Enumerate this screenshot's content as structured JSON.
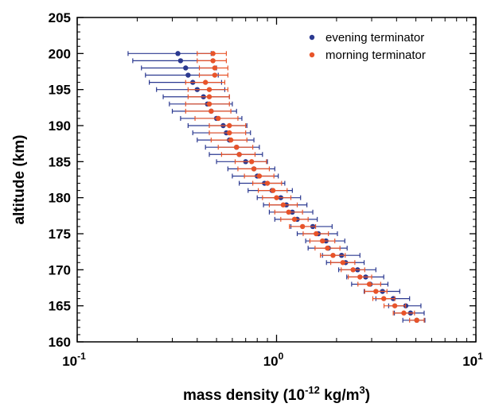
{
  "chart_data": {
    "type": "scatter",
    "xscale": "log",
    "xlim": [
      0.1,
      10
    ],
    "ylim": [
      160,
      205
    ],
    "xlabel_main": "mass density (10",
    "xlabel_exp": "-12",
    "xlabel_unit": " kg/m",
    "xlabel_unit_exp": "3",
    "xlabel_close": ")",
    "ylabel": "altitude (km)",
    "x_major_ticks": [
      {
        "value": 0.1,
        "base": "10",
        "exp": "-1"
      },
      {
        "value": 1,
        "base": "10",
        "exp": "0"
      },
      {
        "value": 10,
        "base": "10",
        "exp": "1"
      }
    ],
    "y_ticks": [
      160,
      165,
      170,
      175,
      180,
      185,
      190,
      195,
      200,
      205
    ],
    "legend_position": "top-right",
    "error_bars": "horizontal",
    "series": [
      {
        "name": "evening terminator",
        "color": "#2b3990",
        "points": [
          {
            "y": 200,
            "x": 0.32,
            "xmin": 0.18,
            "xmax": 0.47
          },
          {
            "y": 199,
            "x": 0.33,
            "xmin": 0.19,
            "xmax": 0.48
          },
          {
            "y": 198,
            "x": 0.35,
            "xmin": 0.21,
            "xmax": 0.5
          },
          {
            "y": 197,
            "x": 0.36,
            "xmin": 0.22,
            "xmax": 0.51
          },
          {
            "y": 196,
            "x": 0.38,
            "xmin": 0.23,
            "xmax": 0.53
          },
          {
            "y": 195,
            "x": 0.4,
            "xmin": 0.25,
            "xmax": 0.55
          },
          {
            "y": 194,
            "x": 0.43,
            "xmin": 0.27,
            "xmax": 0.58
          },
          {
            "y": 193,
            "x": 0.45,
            "xmin": 0.29,
            "xmax": 0.6
          },
          {
            "y": 192,
            "x": 0.47,
            "xmin": 0.3,
            "xmax": 0.63
          },
          {
            "y": 191,
            "x": 0.5,
            "xmin": 0.33,
            "xmax": 0.67
          },
          {
            "y": 190,
            "x": 0.54,
            "xmin": 0.36,
            "xmax": 0.71
          },
          {
            "y": 189,
            "x": 0.56,
            "xmin": 0.38,
            "xmax": 0.74
          },
          {
            "y": 188,
            "x": 0.58,
            "xmin": 0.4,
            "xmax": 0.77
          },
          {
            "y": 187,
            "x": 0.63,
            "xmin": 0.44,
            "xmax": 0.82
          },
          {
            "y": 186,
            "x": 0.65,
            "xmin": 0.46,
            "xmax": 0.85
          },
          {
            "y": 185,
            "x": 0.7,
            "xmin": 0.5,
            "xmax": 0.9
          },
          {
            "y": 184,
            "x": 0.77,
            "xmin": 0.57,
            "xmax": 0.98
          },
          {
            "y": 183,
            "x": 0.8,
            "xmin": 0.6,
            "xmax": 1.02
          },
          {
            "y": 182,
            "x": 0.87,
            "xmin": 0.65,
            "xmax": 1.1
          },
          {
            "y": 181,
            "x": 0.95,
            "xmin": 0.72,
            "xmax": 1.2
          },
          {
            "y": 180,
            "x": 1.05,
            "xmin": 0.8,
            "xmax": 1.32
          },
          {
            "y": 179,
            "x": 1.12,
            "xmin": 0.86,
            "xmax": 1.42
          },
          {
            "y": 178,
            "x": 1.2,
            "xmin": 0.92,
            "xmax": 1.52
          },
          {
            "y": 177,
            "x": 1.27,
            "xmin": 0.98,
            "xmax": 1.6
          },
          {
            "y": 176,
            "x": 1.52,
            "xmin": 1.18,
            "xmax": 1.9
          },
          {
            "y": 175,
            "x": 1.62,
            "xmin": 1.27,
            "xmax": 2.02
          },
          {
            "y": 174,
            "x": 1.77,
            "xmin": 1.4,
            "xmax": 2.2
          },
          {
            "y": 173,
            "x": 1.82,
            "xmin": 1.44,
            "xmax": 2.26
          },
          {
            "y": 172,
            "x": 2.12,
            "xmin": 1.7,
            "xmax": 2.62
          },
          {
            "y": 171,
            "x": 2.22,
            "xmin": 1.78,
            "xmax": 2.75
          },
          {
            "y": 170,
            "x": 2.55,
            "xmin": 2.05,
            "xmax": 3.15
          },
          {
            "y": 169,
            "x": 2.8,
            "xmin": 2.25,
            "xmax": 3.45
          },
          {
            "y": 168,
            "x": 2.95,
            "xmin": 2.38,
            "xmax": 3.62
          },
          {
            "y": 167,
            "x": 3.4,
            "xmin": 2.75,
            "xmax": 4.15
          },
          {
            "y": 166,
            "x": 3.85,
            "xmin": 3.15,
            "xmax": 4.65
          },
          {
            "y": 165,
            "x": 4.45,
            "xmin": 3.65,
            "xmax": 5.3
          },
          {
            "y": 164,
            "x": 4.7,
            "xmin": 3.9,
            "xmax": 5.5
          },
          {
            "y": 163,
            "x": 5.05,
            "xmin": 4.3,
            "xmax": 5.55
          }
        ]
      },
      {
        "name": "morning terminator",
        "color": "#e8542a",
        "points": [
          {
            "y": 200,
            "x": 0.48,
            "xmin": 0.4,
            "xmax": 0.56
          },
          {
            "y": 199,
            "x": 0.48,
            "xmin": 0.4,
            "xmax": 0.56
          },
          {
            "y": 198,
            "x": 0.49,
            "xmin": 0.41,
            "xmax": 0.57
          },
          {
            "y": 197,
            "x": 0.49,
            "xmin": 0.41,
            "xmax": 0.57
          },
          {
            "y": 196,
            "x": 0.44,
            "xmin": 0.35,
            "xmax": 0.55
          },
          {
            "y": 195,
            "x": 0.46,
            "xmin": 0.36,
            "xmax": 0.57
          },
          {
            "y": 194,
            "x": 0.46,
            "xmin": 0.36,
            "xmax": 0.58
          },
          {
            "y": 193,
            "x": 0.46,
            "xmin": 0.35,
            "xmax": 0.58
          },
          {
            "y": 192,
            "x": 0.47,
            "xmin": 0.35,
            "xmax": 0.59
          },
          {
            "y": 191,
            "x": 0.51,
            "xmin": 0.39,
            "xmax": 0.64
          },
          {
            "y": 190,
            "x": 0.58,
            "xmin": 0.46,
            "xmax": 0.7
          },
          {
            "y": 189,
            "x": 0.58,
            "xmin": 0.46,
            "xmax": 0.7
          },
          {
            "y": 188,
            "x": 0.59,
            "xmin": 0.47,
            "xmax": 0.71
          },
          {
            "y": 187,
            "x": 0.63,
            "xmin": 0.51,
            "xmax": 0.76
          },
          {
            "y": 186,
            "x": 0.65,
            "xmin": 0.53,
            "xmax": 0.78
          },
          {
            "y": 185,
            "x": 0.75,
            "xmin": 0.62,
            "xmax": 0.89
          },
          {
            "y": 184,
            "x": 0.77,
            "xmin": 0.64,
            "xmax": 0.92
          },
          {
            "y": 183,
            "x": 0.82,
            "xmin": 0.69,
            "xmax": 0.97
          },
          {
            "y": 182,
            "x": 0.9,
            "xmin": 0.76,
            "xmax": 1.06
          },
          {
            "y": 181,
            "x": 0.96,
            "xmin": 0.81,
            "xmax": 1.13
          },
          {
            "y": 180,
            "x": 1.0,
            "xmin": 0.85,
            "xmax": 1.18
          },
          {
            "y": 179,
            "x": 1.08,
            "xmin": 0.92,
            "xmax": 1.27
          },
          {
            "y": 178,
            "x": 1.15,
            "xmin": 0.98,
            "xmax": 1.35
          },
          {
            "y": 177,
            "x": 1.23,
            "xmin": 1.05,
            "xmax": 1.44
          },
          {
            "y": 176,
            "x": 1.35,
            "xmin": 1.16,
            "xmax": 1.57
          },
          {
            "y": 175,
            "x": 1.58,
            "xmin": 1.36,
            "xmax": 1.82
          },
          {
            "y": 174,
            "x": 1.7,
            "xmin": 1.47,
            "xmax": 1.96
          },
          {
            "y": 173,
            "x": 1.8,
            "xmin": 1.56,
            "xmax": 2.08
          },
          {
            "y": 172,
            "x": 1.92,
            "xmin": 1.66,
            "xmax": 2.21
          },
          {
            "y": 171,
            "x": 2.15,
            "xmin": 1.87,
            "xmax": 2.47
          },
          {
            "y": 170,
            "x": 2.42,
            "xmin": 2.11,
            "xmax": 2.77
          },
          {
            "y": 169,
            "x": 2.62,
            "xmin": 2.29,
            "xmax": 3.0
          },
          {
            "y": 168,
            "x": 2.92,
            "xmin": 2.56,
            "xmax": 3.33
          },
          {
            "y": 167,
            "x": 3.15,
            "xmin": 2.77,
            "xmax": 3.58
          },
          {
            "y": 166,
            "x": 3.45,
            "xmin": 3.04,
            "xmax": 3.92
          },
          {
            "y": 165,
            "x": 3.92,
            "xmin": 3.46,
            "xmax": 4.44
          },
          {
            "y": 164,
            "x": 4.35,
            "xmin": 3.85,
            "xmax": 4.92
          },
          {
            "y": 163,
            "x": 5.05,
            "xmin": 4.65,
            "xmax": 5.5
          }
        ]
      }
    ]
  }
}
